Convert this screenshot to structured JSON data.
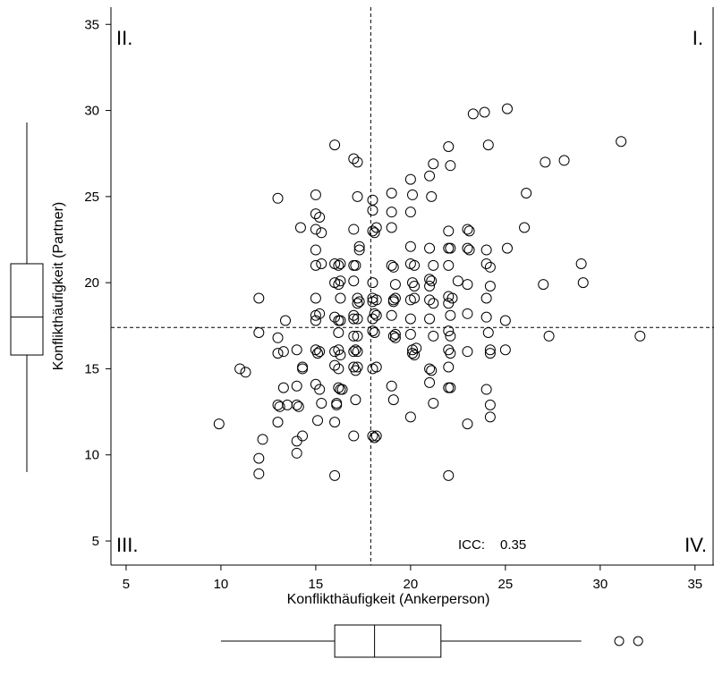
{
  "chart_data": {
    "type": "scatter",
    "xlabel": "Konflikthäufigkeit (Ankerperson)",
    "ylabel": "Konflikthäufigkeit (Partner)",
    "xlim": [
      4.2,
      36
    ],
    "ylim": [
      3.6,
      36
    ],
    "xticks": [
      5,
      10,
      15,
      20,
      25,
      30,
      35
    ],
    "yticks": [
      5,
      10,
      15,
      20,
      25,
      30,
      35
    ],
    "mean_lines": {
      "x": 17.9,
      "y": 17.4
    },
    "quadrant_labels": [
      "I.",
      "II.",
      "III.",
      "IV."
    ],
    "annotation": {
      "label": "ICC:",
      "value": "0.35"
    },
    "boxplot_x": {
      "whisker_low": 10,
      "q1": 16,
      "median": 18.1,
      "q3": 21.6,
      "whisker_high": 29,
      "outliers": [
        31,
        32
      ]
    },
    "boxplot_y": {
      "whisker_low": 9,
      "q1": 15.8,
      "median": 18,
      "q3": 21.1,
      "whisker_high": 29.3,
      "outliers": []
    },
    "points": [
      [
        9.9,
        11.8
      ],
      [
        11,
        15
      ],
      [
        11.3,
        14.8
      ],
      [
        12,
        19.1
      ],
      [
        12,
        17.1
      ],
      [
        12,
        9.8
      ],
      [
        12,
        8.9
      ],
      [
        12.2,
        10.9
      ],
      [
        13,
        24.9
      ],
      [
        13,
        16.8
      ],
      [
        13,
        15.9
      ],
      [
        13,
        11.9
      ],
      [
        13,
        12.9
      ],
      [
        13.1,
        12.8
      ],
      [
        13.3,
        13.9
      ],
      [
        13.3,
        16
      ],
      [
        13.4,
        17.8
      ],
      [
        13.5,
        12.9
      ],
      [
        14,
        16.1
      ],
      [
        14,
        12.9
      ],
      [
        14.1,
        12.8
      ],
      [
        14,
        10.8
      ],
      [
        14,
        10.1
      ],
      [
        14,
        14
      ],
      [
        14.2,
        23.2
      ],
      [
        14.3,
        11.1
      ],
      [
        14.3,
        15
      ],
      [
        14.3,
        15.1
      ],
      [
        15,
        25.1
      ],
      [
        15,
        24
      ],
      [
        15.2,
        23.8
      ],
      [
        15,
        23.1
      ],
      [
        15.3,
        22.9
      ],
      [
        15,
        21.9
      ],
      [
        15,
        21
      ],
      [
        15.3,
        21.1
      ],
      [
        15,
        19.1
      ],
      [
        15,
        18.1
      ],
      [
        15.2,
        18.2
      ],
      [
        15,
        17.8
      ],
      [
        15,
        16.1
      ],
      [
        15.1,
        15.9
      ],
      [
        15.2,
        16
      ],
      [
        15,
        14.1
      ],
      [
        15.2,
        13.8
      ],
      [
        15.3,
        13
      ],
      [
        15.1,
        12
      ],
      [
        16,
        28
      ],
      [
        16,
        21.1
      ],
      [
        16.2,
        21
      ],
      [
        16.3,
        21.1
      ],
      [
        16,
        20
      ],
      [
        16.2,
        19.9
      ],
      [
        16,
        18
      ],
      [
        16.2,
        17.8
      ],
      [
        16.3,
        17.8
      ],
      [
        16.2,
        17.1
      ],
      [
        16,
        16
      ],
      [
        16.2,
        16.1
      ],
      [
        16.3,
        15.8
      ],
      [
        16,
        15.2
      ],
      [
        16.2,
        15
      ],
      [
        16.2,
        13.9
      ],
      [
        16.3,
        13.8
      ],
      [
        16.4,
        13.8
      ],
      [
        16.1,
        13
      ],
      [
        16.1,
        12.9
      ],
      [
        16,
        11.9
      ],
      [
        16,
        8.8
      ],
      [
        16.3,
        19.1
      ],
      [
        16.3,
        20.1
      ],
      [
        17,
        27.2
      ],
      [
        17.2,
        27
      ],
      [
        17,
        23.1
      ],
      [
        17.2,
        25
      ],
      [
        17.3,
        22.1
      ],
      [
        17.3,
        21.9
      ],
      [
        17,
        21
      ],
      [
        17.1,
        21
      ],
      [
        17,
        20.1
      ],
      [
        17.2,
        18.8
      ],
      [
        17.3,
        18.9
      ],
      [
        17,
        18.1
      ],
      [
        17,
        17.9
      ],
      [
        17.2,
        17.9
      ],
      [
        17,
        16.9
      ],
      [
        17.2,
        16.9
      ],
      [
        17,
        16
      ],
      [
        17.1,
        16.1
      ],
      [
        17.2,
        16
      ],
      [
        17,
        15.1
      ],
      [
        17.1,
        14.9
      ],
      [
        17.2,
        15.1
      ],
      [
        17.1,
        13.2
      ],
      [
        17,
        11.1
      ],
      [
        17.2,
        19.1
      ],
      [
        18,
        24.8
      ],
      [
        18,
        24.2
      ],
      [
        18,
        23
      ],
      [
        18.1,
        22.9
      ],
      [
        18.2,
        23.2
      ],
      [
        18,
        20
      ],
      [
        18,
        19.1
      ],
      [
        18.2,
        19
      ],
      [
        18,
        18.9
      ],
      [
        18.1,
        18.2
      ],
      [
        18.2,
        18.1
      ],
      [
        18,
        17.2
      ],
      [
        18.1,
        17.1
      ],
      [
        18,
        15
      ],
      [
        18.2,
        15.1
      ],
      [
        18,
        11.1
      ],
      [
        18.1,
        11
      ],
      [
        18.2,
        11.1
      ],
      [
        18,
        17.9
      ],
      [
        19,
        25.2
      ],
      [
        19,
        24.1
      ],
      [
        19,
        23.2
      ],
      [
        19,
        21
      ],
      [
        19.1,
        20.9
      ],
      [
        19.2,
        19.9
      ],
      [
        19.1,
        19
      ],
      [
        19.2,
        19.1
      ],
      [
        19.1,
        18.9
      ],
      [
        19,
        18.1
      ],
      [
        19.2,
        17
      ],
      [
        19.1,
        16.9
      ],
      [
        19.2,
        16.8
      ],
      [
        19,
        14
      ],
      [
        19.1,
        13.2
      ],
      [
        20,
        26
      ],
      [
        20.1,
        25.1
      ],
      [
        20,
        24.1
      ],
      [
        20,
        22.1
      ],
      [
        20,
        21.1
      ],
      [
        20.2,
        21
      ],
      [
        20.1,
        20
      ],
      [
        20.2,
        19.8
      ],
      [
        20,
        19
      ],
      [
        20.2,
        19.1
      ],
      [
        20,
        17.9
      ],
      [
        20,
        17
      ],
      [
        20.1,
        16.1
      ],
      [
        20.1,
        15.9
      ],
      [
        20.3,
        16.2
      ],
      [
        20.2,
        15.8
      ],
      [
        20,
        12.2
      ],
      [
        21,
        26.2
      ],
      [
        21.1,
        25
      ],
      [
        21.2,
        26.9
      ],
      [
        21,
        22
      ],
      [
        21.2,
        21
      ],
      [
        21,
        20.2
      ],
      [
        21.1,
        20.1
      ],
      [
        21,
        19.8
      ],
      [
        21,
        19
      ],
      [
        21.2,
        18.8
      ],
      [
        21,
        17.9
      ],
      [
        21.2,
        16.9
      ],
      [
        21,
        15
      ],
      [
        21.1,
        14.9
      ],
      [
        21,
        14.2
      ],
      [
        21.2,
        13
      ],
      [
        22,
        27.9
      ],
      [
        22.1,
        26.8
      ],
      [
        22,
        23
      ],
      [
        22,
        22
      ],
      [
        22.1,
        22
      ],
      [
        22,
        21
      ],
      [
        22,
        19.2
      ],
      [
        22.2,
        19.1
      ],
      [
        22,
        18.8
      ],
      [
        22.1,
        18.1
      ],
      [
        22,
        17.2
      ],
      [
        22.1,
        16.9
      ],
      [
        22,
        16.1
      ],
      [
        22.1,
        15.9
      ],
      [
        22,
        15.1
      ],
      [
        22,
        13.9
      ],
      [
        22.1,
        13.9
      ],
      [
        22,
        8.8
      ],
      [
        23,
        23.1
      ],
      [
        23.1,
        23
      ],
      [
        23,
        22
      ],
      [
        23.1,
        21.9
      ],
      [
        23,
        19.9
      ],
      [
        23,
        18.2
      ],
      [
        23,
        16
      ],
      [
        23,
        11.8
      ],
      [
        22.5,
        20.1
      ],
      [
        23.3,
        29.8
      ],
      [
        23.9,
        29.9
      ],
      [
        24.1,
        28
      ],
      [
        24,
        21.9
      ],
      [
        24,
        21.1
      ],
      [
        24.2,
        20.9
      ],
      [
        24,
        19.1
      ],
      [
        24.2,
        19.8
      ],
      [
        24,
        18
      ],
      [
        24.1,
        17.1
      ],
      [
        24.2,
        16.1
      ],
      [
        24.2,
        15.9
      ],
      [
        24,
        13.8
      ],
      [
        24.2,
        12.9
      ],
      [
        24.2,
        12.2
      ],
      [
        25.1,
        30.1
      ],
      [
        25.1,
        22
      ],
      [
        25,
        17.8
      ],
      [
        25,
        16.1
      ],
      [
        26,
        23.2
      ],
      [
        26.1,
        25.2
      ],
      [
        27,
        19.9
      ],
      [
        27.1,
        27
      ],
      [
        27.3,
        16.9
      ],
      [
        28.1,
        27.1
      ],
      [
        29,
        21.1
      ],
      [
        29.1,
        20
      ],
      [
        31.1,
        28.2
      ],
      [
        32.1,
        16.9
      ]
    ]
  }
}
